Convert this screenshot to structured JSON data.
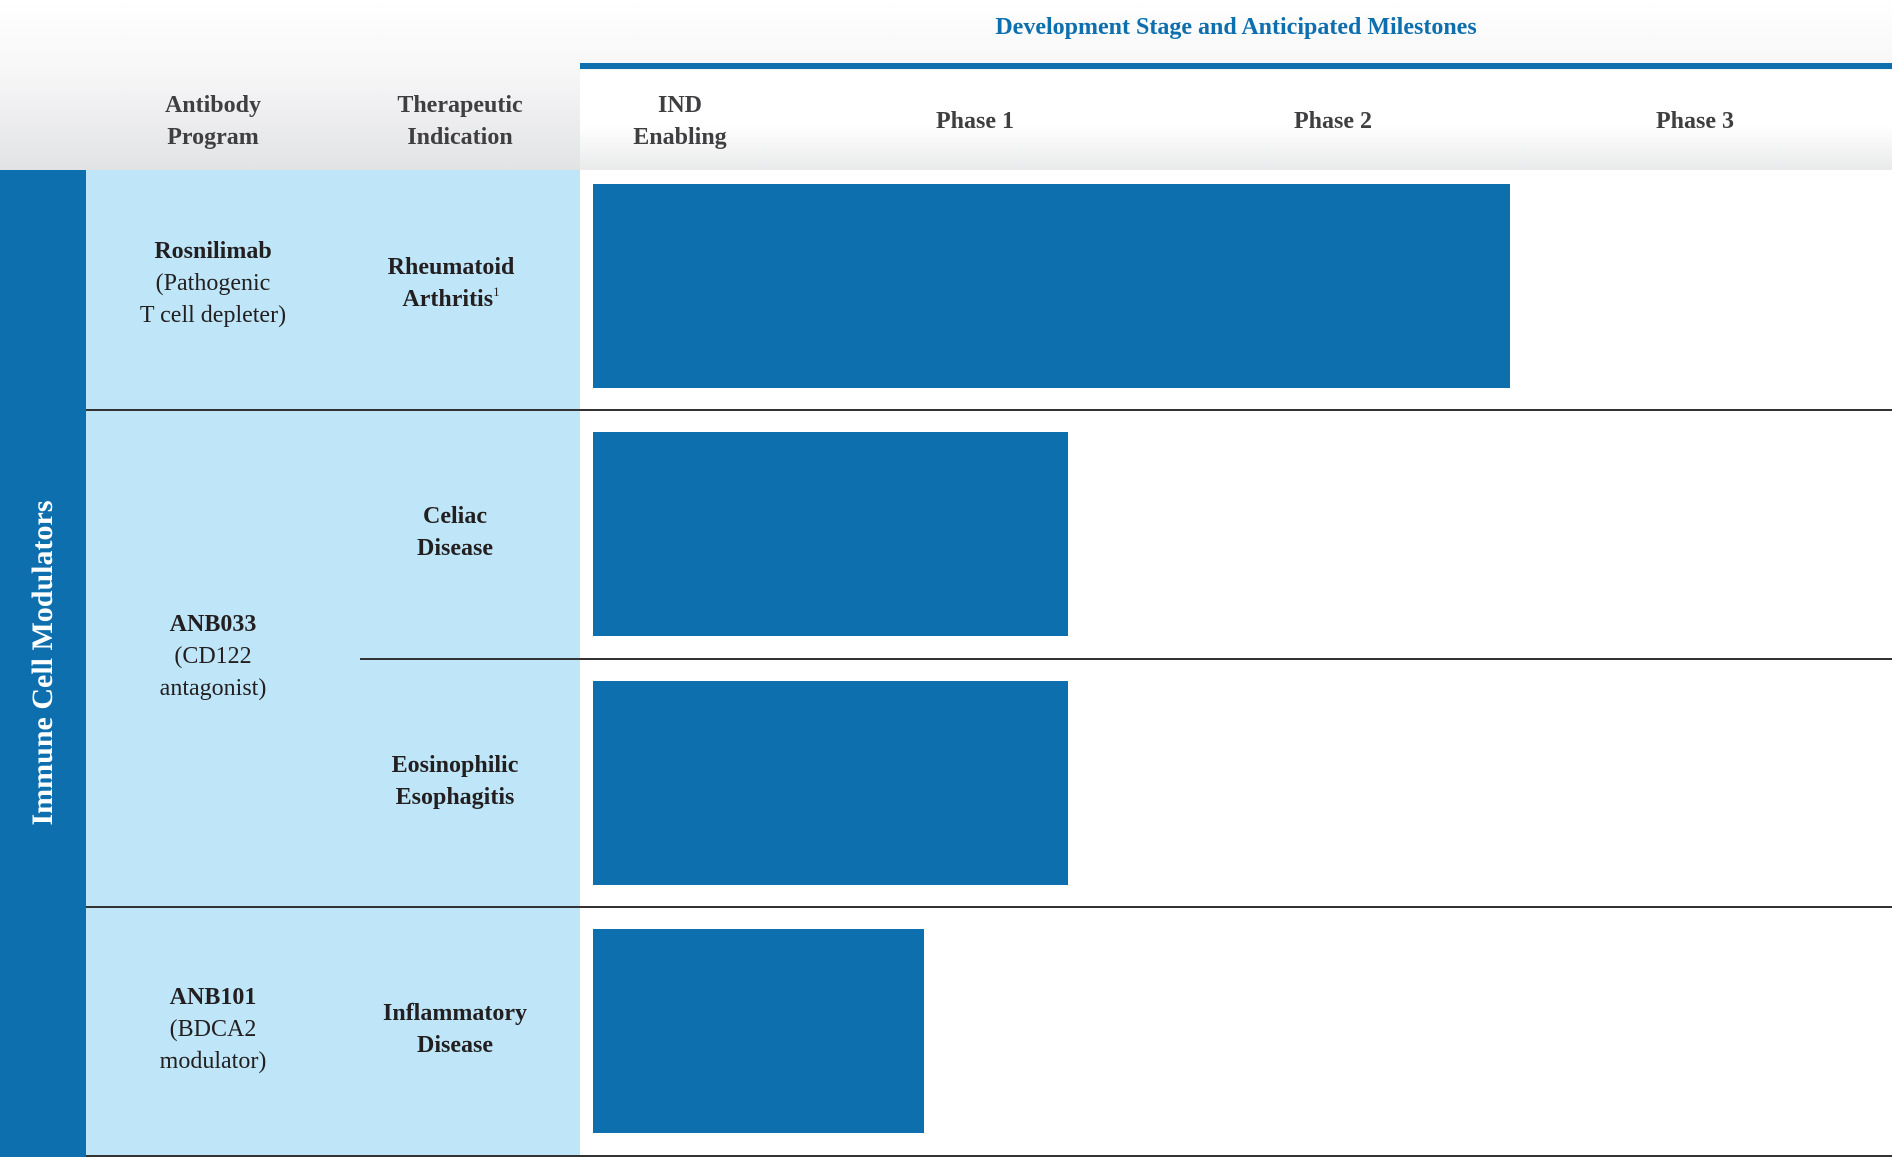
{
  "header": {
    "dev_title": "Development Stage and Anticipated Milestones",
    "antibody_program": [
      "Antibody",
      "Program"
    ],
    "therapeutic_indication": [
      "Therapeutic",
      "Indication"
    ]
  },
  "side_label": "Immune Cell Modulators",
  "programs": [
    {
      "name": "Rosnilimab",
      "desc": [
        "(Pathogenic",
        "T cell depleter)"
      ]
    },
    {
      "name": "ANB033",
      "desc": [
        "(CD122",
        "antagonist)"
      ]
    },
    {
      "name": "ANB101",
      "desc": [
        "(BDCA2",
        "modulator)"
      ]
    }
  ],
  "indications": [
    {
      "lines": [
        "Rheumatoid",
        "Arthritis"
      ],
      "footnote": "1"
    },
    {
      "lines": [
        "Celiac",
        "Disease"
      ]
    },
    {
      "lines": [
        "Eosinophilic",
        "Esophagitis"
      ]
    },
    {
      "lines": [
        "Inflammatory",
        "Disease"
      ]
    }
  ],
  "colors": {
    "accent": "#0e6faf",
    "light": "#bfe6f8"
  },
  "chart_data": {
    "type": "bar",
    "orientation": "horizontal",
    "title": "Development Stage and Anticipated Milestones",
    "stages": [
      "IND Enabling",
      "Phase 1",
      "Phase 2",
      "Phase 3"
    ],
    "stage_labels": [
      [
        "IND",
        "Enabling"
      ],
      [
        "Phase 1"
      ],
      [
        "Phase 2"
      ],
      [
        "Phase 3"
      ]
    ],
    "categories": [
      "Rheumatoid Arthritis",
      "Celiac Disease",
      "Eosinophilic Esophagitis",
      "Inflammatory Disease"
    ],
    "values": [
      3.0,
      1.8,
      1.8,
      1.4
    ],
    "value_unit": "stages completed (0-4 scale; each stage = 1)",
    "xlim": [
      0,
      4
    ]
  }
}
